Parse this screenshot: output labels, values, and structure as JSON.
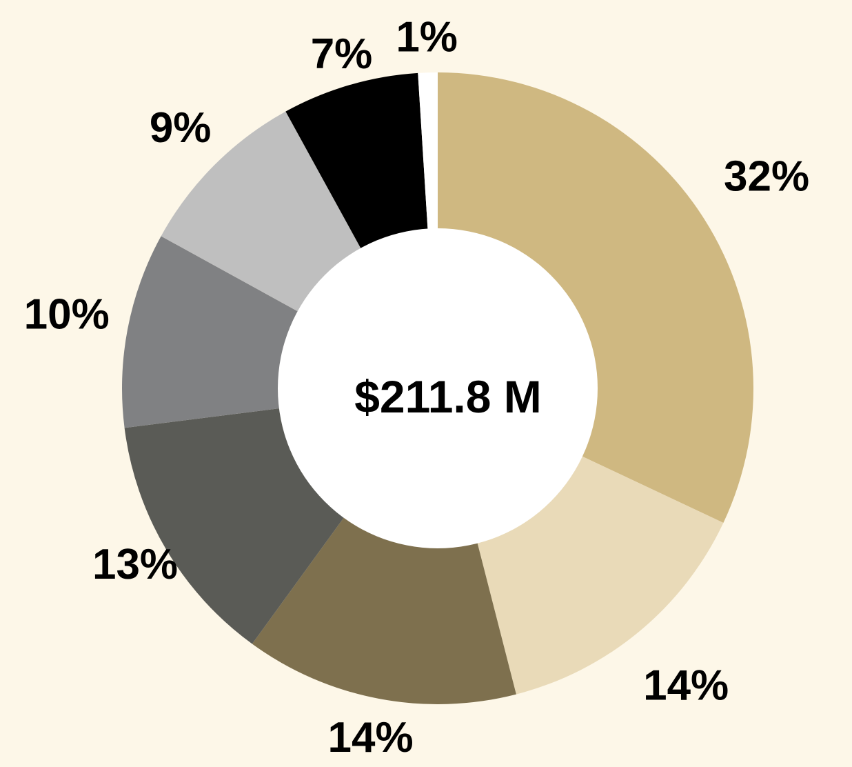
{
  "chart_data": {
    "type": "pie",
    "center_label": "$211.8 M",
    "labels": [
      "32%",
      "14%",
      "14%",
      "13%",
      "10%",
      "9%",
      "7%",
      "1%"
    ],
    "values": [
      32,
      14,
      14,
      13,
      10,
      9,
      7,
      1
    ],
    "colors": [
      "#cfb881",
      "#e9dab8",
      "#7e704e",
      "#5a5b56",
      "#808183",
      "#bfbfbf",
      "#000000",
      "#ffffff"
    ]
  },
  "colors": {
    "background": "#fdf7e8",
    "hole": "#ffffff"
  }
}
